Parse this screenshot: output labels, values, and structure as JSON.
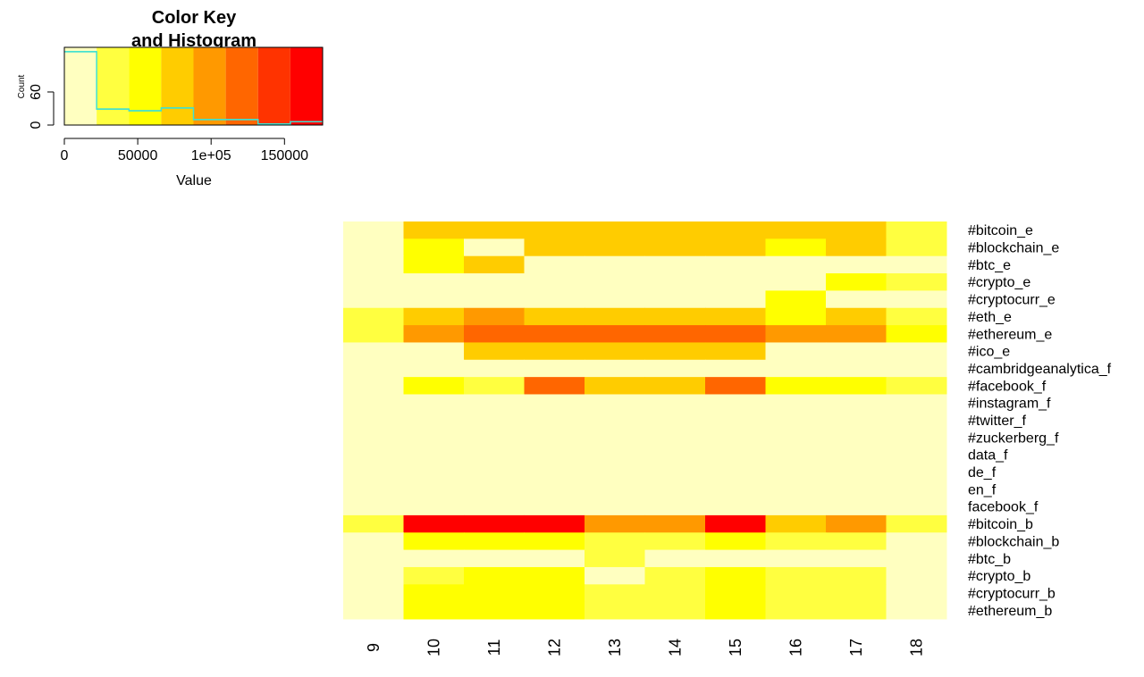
{
  "chart_data": [
    {
      "type": "heatmap",
      "categories": [
        "9",
        "10",
        "11",
        "12",
        "13",
        "14",
        "15",
        "16",
        "17",
        "18"
      ],
      "rows": [
        "#bitcoin_e",
        "#blockchain_e",
        "#btc_e",
        "#crypto_e",
        "#cryptocurr_e",
        "#eth_e",
        "#ethereum_e",
        "#ico_e",
        "#cambridgeanalytica_f",
        "#facebook_f",
        "#instagram_f",
        "#twitter_f",
        "#zuckerberg_f",
        "data_f",
        "de_f",
        "en_f",
        "facebook_f",
        "#bitcoin_b",
        "#blockchain_b",
        "#btc_b",
        "#crypto_b",
        "#cryptocurr_b",
        "#ethereum_b"
      ],
      "values": [
        [
          11000,
          77000,
          77000,
          77000,
          77000,
          77000,
          77000,
          77000,
          77000,
          33000
        ],
        [
          11000,
          55000,
          11000,
          77000,
          77000,
          77000,
          77000,
          55000,
          77000,
          33000
        ],
        [
          11000,
          55000,
          77000,
          11000,
          11000,
          11000,
          11000,
          11000,
          11000,
          11000
        ],
        [
          11000,
          11000,
          11000,
          11000,
          11000,
          11000,
          11000,
          11000,
          55000,
          33000
        ],
        [
          11000,
          11000,
          11000,
          11000,
          11000,
          11000,
          11000,
          55000,
          11000,
          11000
        ],
        [
          33000,
          77000,
          99000,
          77000,
          77000,
          77000,
          77000,
          55000,
          77000,
          33000
        ],
        [
          33000,
          99000,
          121000,
          121000,
          121000,
          121000,
          121000,
          99000,
          99000,
          55000
        ],
        [
          11000,
          11000,
          77000,
          77000,
          77000,
          77000,
          77000,
          11000,
          11000,
          11000
        ],
        [
          11000,
          11000,
          11000,
          11000,
          11000,
          11000,
          11000,
          11000,
          11000,
          11000
        ],
        [
          11000,
          55000,
          33000,
          121000,
          77000,
          77000,
          121000,
          55000,
          55000,
          33000
        ],
        [
          11000,
          11000,
          11000,
          11000,
          11000,
          11000,
          11000,
          11000,
          11000,
          11000
        ],
        [
          11000,
          11000,
          11000,
          11000,
          11000,
          11000,
          11000,
          11000,
          11000,
          11000
        ],
        [
          11000,
          11000,
          11000,
          11000,
          11000,
          11000,
          11000,
          11000,
          11000,
          11000
        ],
        [
          11000,
          11000,
          11000,
          11000,
          11000,
          11000,
          11000,
          11000,
          11000,
          11000
        ],
        [
          11000,
          11000,
          11000,
          11000,
          11000,
          11000,
          11000,
          11000,
          11000,
          11000
        ],
        [
          11000,
          11000,
          11000,
          11000,
          11000,
          11000,
          11000,
          11000,
          11000,
          11000
        ],
        [
          11000,
          11000,
          11000,
          11000,
          11000,
          11000,
          11000,
          11000,
          11000,
          11000
        ],
        [
          33000,
          165000,
          165000,
          165000,
          99000,
          99000,
          165000,
          77000,
          99000,
          33000
        ],
        [
          11000,
          55000,
          55000,
          55000,
          33000,
          33000,
          55000,
          33000,
          33000,
          11000
        ],
        [
          11000,
          11000,
          11000,
          11000,
          33000,
          11000,
          11000,
          11000,
          11000,
          11000
        ],
        [
          11000,
          33000,
          55000,
          55000,
          11000,
          33000,
          55000,
          33000,
          33000,
          11000
        ],
        [
          11000,
          55000,
          55000,
          55000,
          33000,
          33000,
          55000,
          33000,
          33000,
          11000
        ],
        [
          11000,
          55000,
          55000,
          55000,
          33000,
          33000,
          55000,
          33000,
          33000,
          11000
        ]
      ]
    },
    {
      "type": "histogram",
      "title": [
        "Color Key",
        "and Histogram"
      ],
      "xlabel": "Value",
      "ylabel": "Count",
      "bins": [
        0,
        22000,
        44000,
        66000,
        88000,
        110000,
        132000,
        154000,
        176000
      ],
      "colors": [
        "#FFFFC0",
        "#FFFF40",
        "#FFFF00",
        "#FFCC00",
        "#FF9900",
        "#FF6600",
        "#FF3300",
        "#FF0000"
      ],
      "values": [
        133,
        29,
        26,
        31,
        10,
        10,
        2,
        6
      ],
      "line_color": "#40E0D0",
      "xlim": [
        0,
        176000
      ],
      "xticks": [
        0,
        50000,
        {
          "value": 100000,
          "label": "1e+05"
        },
        150000
      ],
      "ylim": [
        0,
        141
      ],
      "yticks": [
        0,
        60
      ]
    }
  ]
}
